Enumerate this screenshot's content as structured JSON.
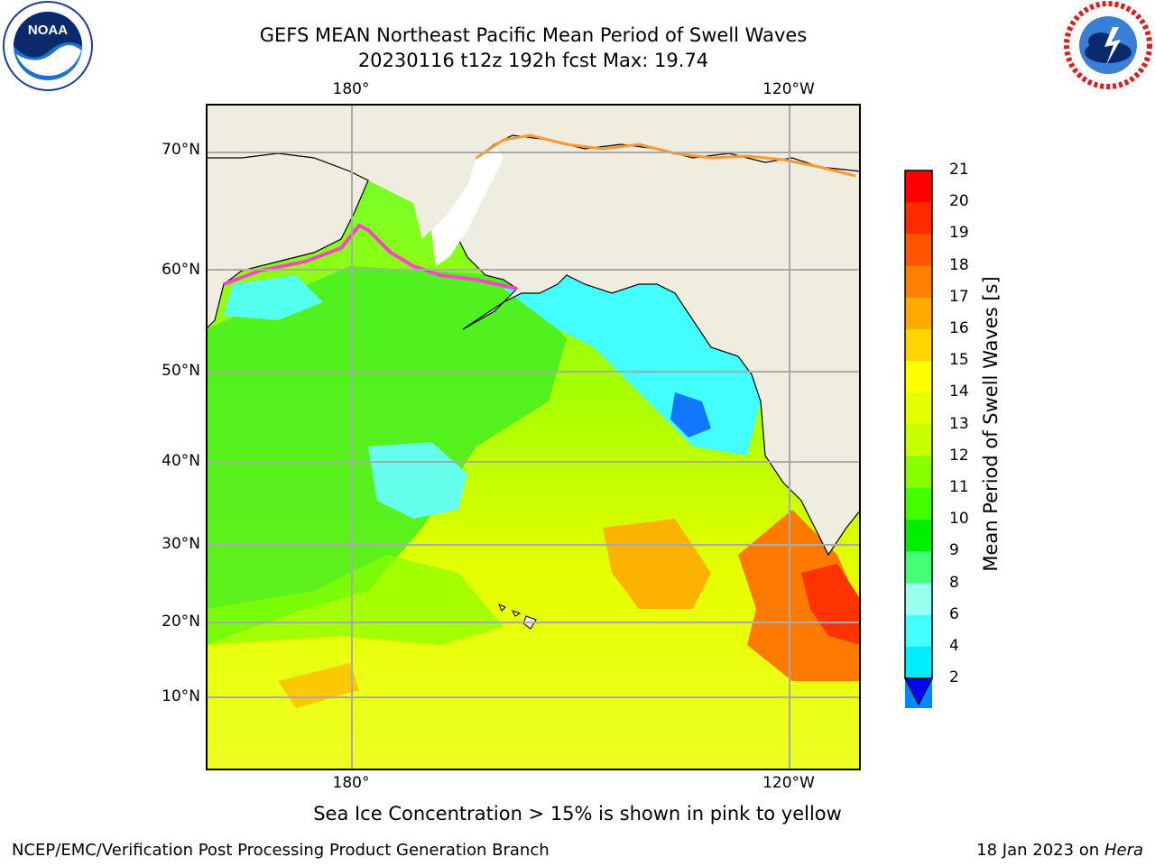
{
  "title_line1": "GEFS MEAN Northeast Pacific Mean Period of Swell Waves",
  "title_line2": "20230116 t12z 192h fcst   Max: 19.74",
  "lon_top": [
    "180°",
    "120°W"
  ],
  "lon_bottom": [
    "180°",
    "120°W"
  ],
  "lat_labels": [
    "70°N",
    "60°N",
    "50°N",
    "40°N",
    "30°N",
    "20°N",
    "10°N"
  ],
  "colorbar": {
    "label": "Mean Period of Swell Waves [s]",
    "ticks": [
      "21",
      "20",
      "19",
      "18",
      "17",
      "16",
      "15",
      "14",
      "13",
      "12",
      "11",
      "10",
      "9",
      "8",
      "6",
      "4",
      "2"
    ],
    "colors": [
      "#ff0000",
      "#ff2a00",
      "#ff5500",
      "#ff8000",
      "#ffaa00",
      "#ffd500",
      "#ffff00",
      "#e5ff00",
      "#c8ff00",
      "#88ff00",
      "#44ff00",
      "#00ee00",
      "#44ff77",
      "#99ffee",
      "#44ffff",
      "#00eeff",
      "#0088ff",
      "#0000ff"
    ]
  },
  "ice_note": "Sea Ice Concentration > 15% is shown in pink to yellow",
  "footer_left": "NCEP/EMC/Verification Post Processing Product Generation Branch",
  "footer_right_date": "18 Jan 2023 on ",
  "footer_right_host": "Hera",
  "logos": {
    "left": "NOAA",
    "right": "NATIONAL WEATHER SERVICE"
  }
}
